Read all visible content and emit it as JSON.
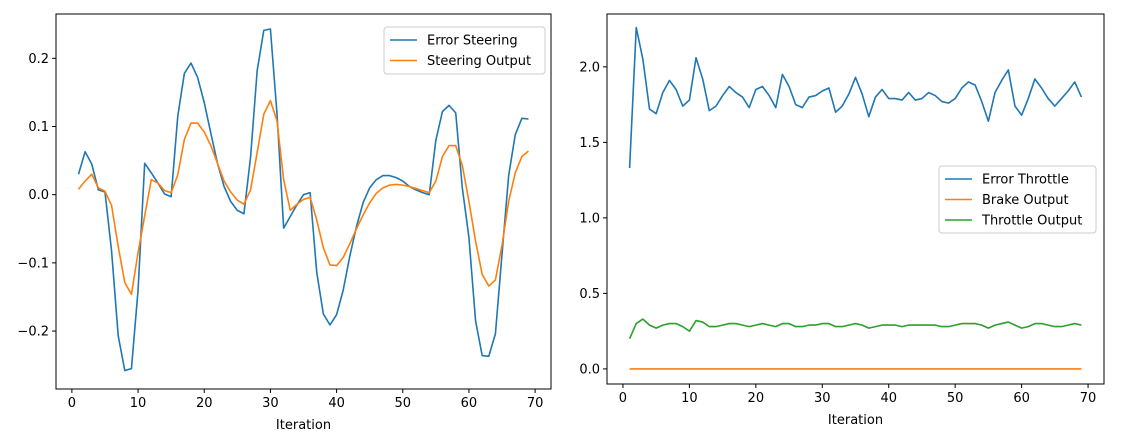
{
  "chart_data": [
    {
      "type": "line",
      "title": "",
      "xlabel": "Iteration",
      "ylabel": "",
      "xlim": [
        -2.4,
        72.4
      ],
      "ylim": [
        -0.285,
        0.265
      ],
      "xticks": [
        0,
        10,
        20,
        30,
        40,
        50,
        60,
        70
      ],
      "xtick_labels": [
        "0",
        "10",
        "20",
        "30",
        "40",
        "50",
        "60",
        "70"
      ],
      "yticks": [
        -0.2,
        -0.1,
        0.0,
        0.1,
        0.2
      ],
      "ytick_labels": [
        "−0.2",
        "−0.1",
        "0.0",
        "0.1",
        "0.2"
      ],
      "grid": false,
      "legend_position": "top-right",
      "x": [
        1,
        2,
        3,
        4,
        5,
        6,
        7,
        8,
        9,
        10,
        11,
        12,
        13,
        14,
        15,
        16,
        17,
        18,
        19,
        20,
        21,
        22,
        23,
        24,
        25,
        26,
        27,
        28,
        29,
        30,
        31,
        32,
        33,
        34,
        35,
        36,
        37,
        38,
        39,
        40,
        41,
        42,
        43,
        44,
        45,
        46,
        47,
        48,
        49,
        50,
        51,
        52,
        53,
        54,
        55,
        56,
        57,
        58,
        59,
        60,
        61,
        62,
        63,
        64,
        65,
        66,
        67,
        68,
        69
      ],
      "series": [
        {
          "name": "Error Steering",
          "color": "#1f77b4",
          "values": [
            0.03,
            0.063,
            0.045,
            0.007,
            0.004,
            -0.083,
            -0.207,
            -0.258,
            -0.255,
            -0.14,
            0.046,
            0.032,
            0.017,
            0.001,
            -0.003,
            0.115,
            0.178,
            0.193,
            0.172,
            0.135,
            0.09,
            0.046,
            0.012,
            -0.01,
            -0.023,
            -0.028,
            0.055,
            0.182,
            0.241,
            0.243,
            0.118,
            -0.049,
            -0.032,
            -0.015,
            0.0,
            0.003,
            -0.114,
            -0.175,
            -0.191,
            -0.176,
            -0.14,
            -0.09,
            -0.047,
            -0.012,
            0.01,
            0.022,
            0.028,
            0.028,
            0.025,
            0.02,
            0.012,
            0.007,
            0.003,
            0.0,
            0.08,
            0.122,
            0.131,
            0.12,
            0.01,
            -0.063,
            -0.185,
            -0.236,
            -0.237,
            -0.204,
            -0.087,
            0.028,
            0.088,
            0.112,
            0.111
          ]
        },
        {
          "name": "Steering Output",
          "color": "#ff7f0e",
          "values": [
            0.008,
            0.02,
            0.03,
            0.01,
            0.005,
            -0.016,
            -0.076,
            -0.129,
            -0.146,
            -0.085,
            -0.031,
            0.022,
            0.017,
            0.006,
            0.003,
            0.029,
            0.081,
            0.105,
            0.105,
            0.092,
            0.072,
            0.046,
            0.02,
            0.004,
            -0.008,
            -0.014,
            0.007,
            0.062,
            0.118,
            0.138,
            0.108,
            0.022,
            -0.023,
            -0.014,
            -0.007,
            -0.004,
            -0.037,
            -0.078,
            -0.103,
            -0.104,
            -0.092,
            -0.072,
            -0.05,
            -0.03,
            -0.012,
            0.002,
            0.01,
            0.014,
            0.015,
            0.014,
            0.012,
            0.009,
            0.006,
            0.003,
            0.02,
            0.056,
            0.072,
            0.072,
            0.043,
            -0.01,
            -0.068,
            -0.117,
            -0.134,
            -0.125,
            -0.074,
            -0.01,
            0.032,
            0.056,
            0.064
          ]
        }
      ]
    },
    {
      "type": "line",
      "title": "",
      "xlabel": "Iteration",
      "ylabel": "",
      "xlim": [
        -2.4,
        72.4
      ],
      "ylim": [
        -0.1,
        2.35
      ],
      "xticks": [
        0,
        10,
        20,
        30,
        40,
        50,
        60,
        70
      ],
      "xtick_labels": [
        "0",
        "10",
        "20",
        "30",
        "40",
        "50",
        "60",
        "70"
      ],
      "yticks": [
        0.0,
        0.5,
        1.0,
        1.5,
        2.0
      ],
      "ytick_labels": [
        "0.0",
        "0.5",
        "1.0",
        "1.5",
        "2.0"
      ],
      "grid": false,
      "legend_position": "center-right",
      "x": [
        1,
        2,
        3,
        4,
        5,
        6,
        7,
        8,
        9,
        10,
        11,
        12,
        13,
        14,
        15,
        16,
        17,
        18,
        19,
        20,
        21,
        22,
        23,
        24,
        25,
        26,
        27,
        28,
        29,
        30,
        31,
        32,
        33,
        34,
        35,
        36,
        37,
        38,
        39,
        40,
        41,
        42,
        43,
        44,
        45,
        46,
        47,
        48,
        49,
        50,
        51,
        52,
        53,
        54,
        55,
        56,
        57,
        58,
        59,
        60,
        61,
        62,
        63,
        64,
        65,
        66,
        67,
        68,
        69
      ],
      "series": [
        {
          "name": "Error Throttle",
          "color": "#1f77b4",
          "values": [
            1.33,
            2.26,
            2.05,
            1.72,
            1.69,
            1.83,
            1.91,
            1.85,
            1.74,
            1.78,
            2.06,
            1.92,
            1.71,
            1.74,
            1.81,
            1.87,
            1.83,
            1.8,
            1.73,
            1.85,
            1.87,
            1.81,
            1.73,
            1.95,
            1.87,
            1.75,
            1.73,
            1.8,
            1.81,
            1.84,
            1.86,
            1.7,
            1.74,
            1.82,
            1.93,
            1.82,
            1.67,
            1.8,
            1.85,
            1.79,
            1.79,
            1.78,
            1.83,
            1.78,
            1.79,
            1.83,
            1.81,
            1.77,
            1.76,
            1.79,
            1.86,
            1.9,
            1.88,
            1.77,
            1.64,
            1.83,
            1.91,
            1.98,
            1.74,
            1.68,
            1.79,
            1.92,
            1.86,
            1.79,
            1.74,
            1.79,
            1.84,
            1.9,
            1.8
          ]
        },
        {
          "name": "Brake Output",
          "color": "#ff7f0e",
          "values": [
            0,
            0,
            0,
            0,
            0,
            0,
            0,
            0,
            0,
            0,
            0,
            0,
            0,
            0,
            0,
            0,
            0,
            0,
            0,
            0,
            0,
            0,
            0,
            0,
            0,
            0,
            0,
            0,
            0,
            0,
            0,
            0,
            0,
            0,
            0,
            0,
            0,
            0,
            0,
            0,
            0,
            0,
            0,
            0,
            0,
            0,
            0,
            0,
            0,
            0,
            0,
            0,
            0,
            0,
            0,
            0,
            0,
            0,
            0,
            0,
            0,
            0,
            0,
            0,
            0,
            0,
            0,
            0,
            0
          ]
        },
        {
          "name": "Throttle Output",
          "color": "#2ca02c",
          "values": [
            0.2,
            0.3,
            0.33,
            0.29,
            0.27,
            0.29,
            0.3,
            0.3,
            0.28,
            0.25,
            0.32,
            0.31,
            0.28,
            0.28,
            0.29,
            0.3,
            0.3,
            0.29,
            0.28,
            0.29,
            0.3,
            0.29,
            0.28,
            0.3,
            0.3,
            0.28,
            0.28,
            0.29,
            0.29,
            0.3,
            0.3,
            0.28,
            0.28,
            0.29,
            0.3,
            0.29,
            0.27,
            0.28,
            0.29,
            0.29,
            0.29,
            0.28,
            0.29,
            0.29,
            0.29,
            0.29,
            0.29,
            0.28,
            0.28,
            0.29,
            0.3,
            0.3,
            0.3,
            0.29,
            0.27,
            0.29,
            0.3,
            0.31,
            0.29,
            0.27,
            0.28,
            0.3,
            0.3,
            0.29,
            0.28,
            0.28,
            0.29,
            0.3,
            0.29
          ]
        }
      ]
    }
  ]
}
